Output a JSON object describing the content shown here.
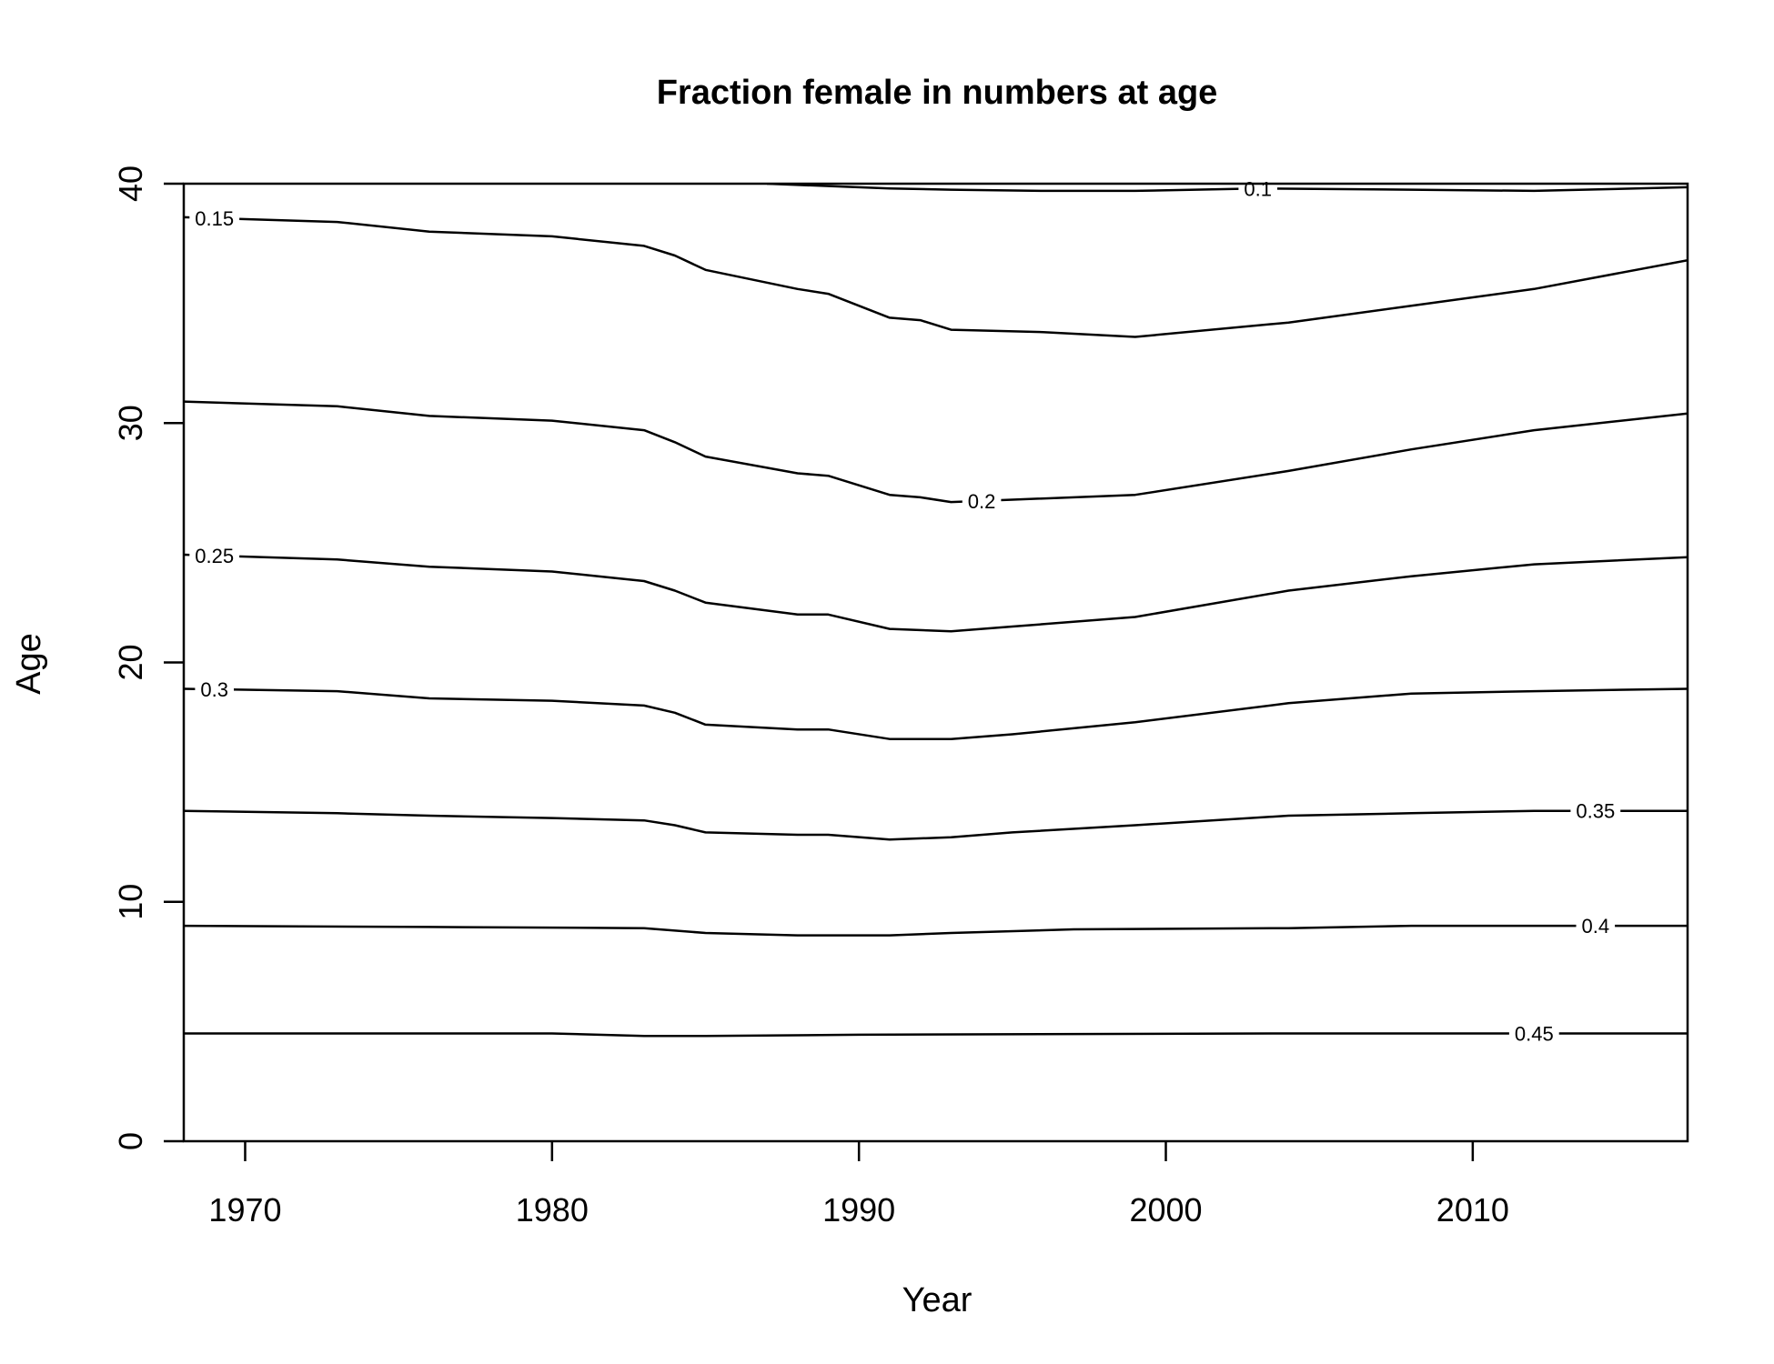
{
  "chart_data": {
    "type": "line",
    "title": "Fraction female in numbers at age",
    "xlabel": "Year",
    "ylabel": "Age",
    "xlim": [
      1968,
      2017
    ],
    "ylim": [
      0,
      40
    ],
    "xticks": [
      1970,
      1980,
      1990,
      2000,
      2010
    ],
    "yticks": [
      0,
      10,
      20,
      30,
      40
    ],
    "grid": false,
    "legend": "none",
    "series": [
      {
        "name": "0.1",
        "label_x": 2003,
        "x": [
          1987,
          1991,
          1993,
          1996,
          1999,
          2003,
          2008,
          2012,
          2017
        ],
        "y": [
          40.0,
          39.8,
          39.75,
          39.7,
          39.7,
          39.8,
          39.75,
          39.7,
          39.85
        ]
      },
      {
        "name": "0.15",
        "label_x": 1969,
        "x": [
          1968,
          1973,
          1976,
          1980,
          1983,
          1984,
          1985,
          1988,
          1989,
          1991,
          1992,
          1993,
          1996,
          1999,
          2004,
          2008,
          2012,
          2017
        ],
        "y": [
          38.6,
          38.4,
          38.0,
          37.8,
          37.4,
          37.0,
          36.4,
          35.6,
          35.4,
          34.4,
          34.3,
          33.9,
          33.8,
          33.6,
          34.2,
          34.9,
          35.6,
          36.8
        ]
      },
      {
        "name": "0.2",
        "label_x": 1994,
        "x": [
          1968,
          1973,
          1976,
          1980,
          1983,
          1984,
          1985,
          1988,
          1989,
          1991,
          1992,
          1993,
          1995,
          1999,
          2004,
          2008,
          2012,
          2017
        ],
        "y": [
          30.9,
          30.7,
          30.3,
          30.1,
          29.7,
          29.2,
          28.6,
          27.9,
          27.8,
          27.0,
          26.9,
          26.7,
          26.8,
          27.0,
          28.0,
          28.9,
          29.7,
          30.4
        ]
      },
      {
        "name": "0.25",
        "label_x": 1969,
        "x": [
          1968,
          1973,
          1976,
          1980,
          1983,
          1984,
          1985,
          1988,
          1989,
          1991,
          1993,
          1995,
          1999,
          2004,
          2008,
          2012,
          2017
        ],
        "y": [
          24.5,
          24.3,
          24.0,
          23.8,
          23.4,
          23.0,
          22.5,
          22.0,
          22.0,
          21.4,
          21.3,
          21.5,
          21.9,
          23.0,
          23.6,
          24.1,
          24.4
        ]
      },
      {
        "name": "0.3",
        "label_x": 1969,
        "x": [
          1968,
          1973,
          1976,
          1980,
          1983,
          1984,
          1985,
          1988,
          1989,
          1991,
          1993,
          1995,
          1999,
          2004,
          2008,
          2012,
          2017
        ],
        "y": [
          18.9,
          18.8,
          18.5,
          18.4,
          18.2,
          17.9,
          17.4,
          17.2,
          17.2,
          16.8,
          16.8,
          17.0,
          17.5,
          18.3,
          18.7,
          18.8,
          18.9
        ]
      },
      {
        "name": "0.35",
        "label_x": 2014,
        "x": [
          1968,
          1973,
          1976,
          1980,
          1983,
          1984,
          1985,
          1988,
          1989,
          1991,
          1993,
          1995,
          1999,
          2004,
          2008,
          2012,
          2017
        ],
        "y": [
          13.8,
          13.7,
          13.6,
          13.5,
          13.4,
          13.2,
          12.9,
          12.8,
          12.8,
          12.6,
          12.7,
          12.9,
          13.2,
          13.6,
          13.7,
          13.8,
          13.8
        ]
      },
      {
        "name": "0.4",
        "label_x": 2014,
        "x": [
          1968,
          1976,
          1983,
          1985,
          1988,
          1991,
          1993,
          1997,
          2004,
          2008,
          2017
        ],
        "y": [
          9.0,
          8.95,
          8.9,
          8.7,
          8.6,
          8.6,
          8.7,
          8.85,
          8.9,
          9.0,
          9.0
        ]
      },
      {
        "name": "0.45",
        "label_x": 2012,
        "x": [
          1968,
          1980,
          1983,
          1985,
          1990,
          2004,
          2017
        ],
        "y": [
          4.5,
          4.5,
          4.4,
          4.4,
          4.45,
          4.5,
          4.5
        ]
      }
    ]
  }
}
